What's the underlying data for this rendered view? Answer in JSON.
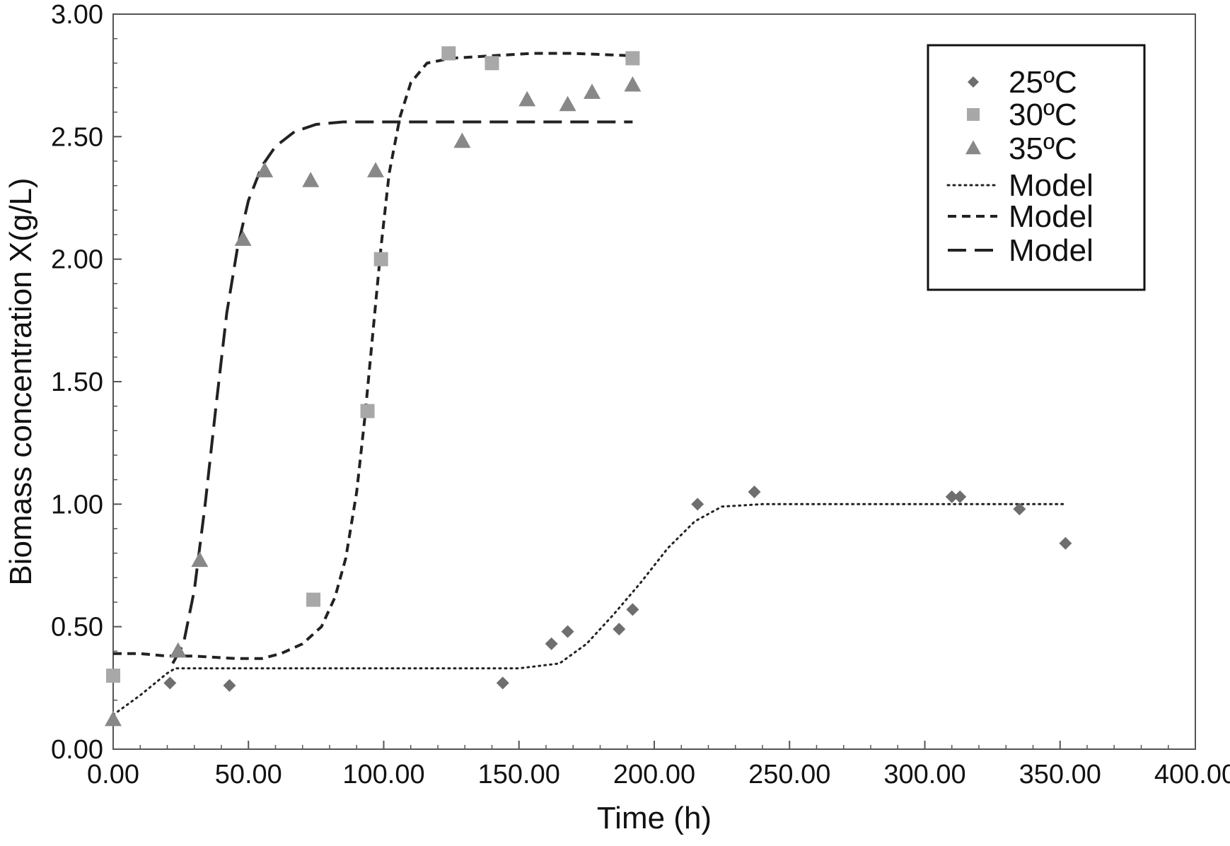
{
  "chart_data": {
    "type": "scatter",
    "title": "",
    "xlabel": "Time (h)",
    "ylabel": "Biomass concentration X(g/L)",
    "xlim": [
      0,
      400
    ],
    "ylim": [
      0,
      3
    ],
    "x_ticks": [
      0,
      50,
      100,
      150,
      200,
      250,
      300,
      350,
      400
    ],
    "x_tick_labels": [
      "0.00",
      "50.00",
      "100.00",
      "150.00",
      "200.00",
      "250.00",
      "300.00",
      "350.00",
      "400.00"
    ],
    "y_ticks": [
      0,
      0.5,
      1,
      1.5,
      2,
      2.5,
      3
    ],
    "y_tick_labels": [
      "0.00",
      "0.50",
      "1.00",
      "1.50",
      "2.00",
      "2.50",
      "3.00"
    ],
    "grid": false,
    "legend_position": "top-right",
    "series": [
      {
        "name": "25ºC",
        "kind": "points",
        "marker": "diamond",
        "color": "#6e6e6e",
        "points": [
          [
            21,
            0.27
          ],
          [
            43,
            0.26
          ],
          [
            144,
            0.27
          ],
          [
            162,
            0.43
          ],
          [
            168,
            0.48
          ],
          [
            187,
            0.49
          ],
          [
            192,
            0.57
          ],
          [
            216,
            1.0
          ],
          [
            237,
            1.05
          ],
          [
            310,
            1.03
          ],
          [
            313,
            1.03
          ],
          [
            335,
            0.98
          ],
          [
            352,
            0.84
          ]
        ]
      },
      {
        "name": "30ºC",
        "kind": "points",
        "marker": "square",
        "color": "#a8a8a8",
        "points": [
          [
            0,
            0.3
          ],
          [
            74,
            0.61
          ],
          [
            94,
            1.38
          ],
          [
            99,
            2.0
          ],
          [
            124,
            2.84
          ],
          [
            140,
            2.8
          ],
          [
            192,
            2.82
          ]
        ]
      },
      {
        "name": "35ºC",
        "kind": "points",
        "marker": "triangle",
        "color": "#888888",
        "points": [
          [
            0,
            0.12
          ],
          [
            24,
            0.4
          ],
          [
            32,
            0.77
          ],
          [
            48,
            2.08
          ],
          [
            56,
            2.36
          ],
          [
            73,
            2.32
          ],
          [
            97,
            2.36
          ],
          [
            129,
            2.48
          ],
          [
            153,
            2.65
          ],
          [
            168,
            2.63
          ],
          [
            177,
            2.68
          ],
          [
            192,
            2.71
          ]
        ]
      },
      {
        "name": "Model",
        "kind": "line",
        "dash": "dotted",
        "color": "#222222",
        "points": [
          [
            0,
            0.14
          ],
          [
            10,
            0.22
          ],
          [
            20,
            0.31
          ],
          [
            23,
            0.33
          ],
          [
            50,
            0.33
          ],
          [
            100,
            0.33
          ],
          [
            150,
            0.33
          ],
          [
            165,
            0.35
          ],
          [
            175,
            0.43
          ],
          [
            185,
            0.55
          ],
          [
            195,
            0.68
          ],
          [
            205,
            0.82
          ],
          [
            215,
            0.93
          ],
          [
            225,
            0.99
          ],
          [
            240,
            1.0
          ],
          [
            280,
            1.0
          ],
          [
            320,
            1.0
          ],
          [
            352,
            1.0
          ]
        ]
      },
      {
        "name": "Model",
        "kind": "line",
        "dash": "short",
        "color": "#222222",
        "points": [
          [
            0,
            0.39
          ],
          [
            10,
            0.39
          ],
          [
            20,
            0.38
          ],
          [
            30,
            0.38
          ],
          [
            45,
            0.37
          ],
          [
            55,
            0.37
          ],
          [
            62,
            0.39
          ],
          [
            70,
            0.43
          ],
          [
            77,
            0.5
          ],
          [
            82,
            0.62
          ],
          [
            86,
            0.78
          ],
          [
            90,
            1.05
          ],
          [
            93,
            1.35
          ],
          [
            96,
            1.7
          ],
          [
            99,
            2.05
          ],
          [
            102,
            2.35
          ],
          [
            106,
            2.58
          ],
          [
            110,
            2.72
          ],
          [
            116,
            2.8
          ],
          [
            125,
            2.82
          ],
          [
            140,
            2.83
          ],
          [
            155,
            2.84
          ],
          [
            170,
            2.84
          ],
          [
            192,
            2.83
          ]
        ]
      },
      {
        "name": "Model",
        "kind": "line",
        "dash": "long",
        "color": "#222222",
        "points": [
          [
            22,
            0.35
          ],
          [
            26,
            0.43
          ],
          [
            30,
            0.65
          ],
          [
            34,
            1.0
          ],
          [
            38,
            1.4
          ],
          [
            42,
            1.78
          ],
          [
            46,
            2.05
          ],
          [
            50,
            2.24
          ],
          [
            55,
            2.38
          ],
          [
            60,
            2.46
          ],
          [
            67,
            2.52
          ],
          [
            75,
            2.55
          ],
          [
            85,
            2.56
          ],
          [
            100,
            2.56
          ],
          [
            130,
            2.56
          ],
          [
            160,
            2.56
          ],
          [
            192,
            2.56
          ]
        ]
      }
    ]
  }
}
